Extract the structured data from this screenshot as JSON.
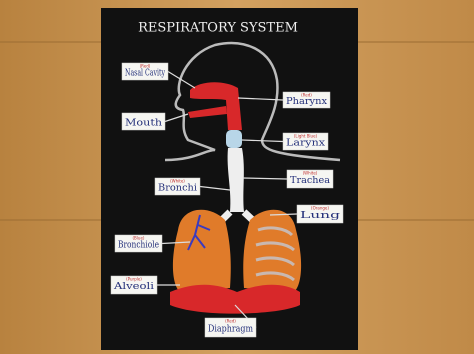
{
  "title": "RESPIRATORY SYSTEM",
  "labels": [
    {
      "text": "Nasal Cavity",
      "note": "(Red)"
    },
    {
      "text": "Mouth"
    },
    {
      "text": "Pharynx",
      "note": "(Red)"
    },
    {
      "text": "Larynx",
      "note": "(Light Blue)"
    },
    {
      "text": "Trachea",
      "note": "(White)"
    },
    {
      "text": "Bronchi",
      "note": "(White)"
    },
    {
      "text": "Lung",
      "note": "(Orange)"
    },
    {
      "text": "Bronchiole",
      "note": "(Blue)"
    },
    {
      "text": "Alveoli",
      "note": "(Purple)"
    },
    {
      "text": "Diaphragm",
      "note": "(Red)"
    }
  ]
}
